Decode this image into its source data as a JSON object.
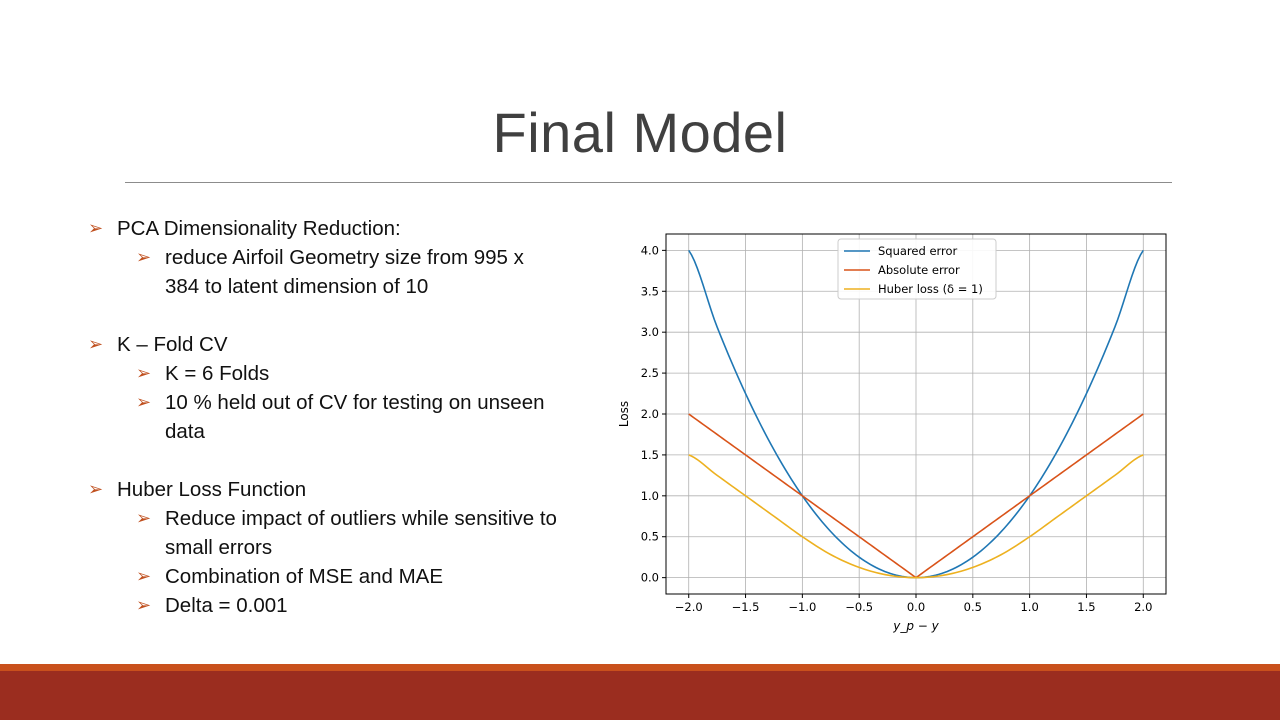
{
  "slide": {
    "title": "Final Model"
  },
  "bullets": [
    {
      "level": 1,
      "text": "PCA Dimensionality Reduction:",
      "gap": false
    },
    {
      "level": 2,
      "text": "reduce Airfoil Geometry size from 995 x 384 to latent dimension of 10",
      "gap": false
    },
    {
      "level": 1,
      "text": "K – Fold CV",
      "gap": true
    },
    {
      "level": 2,
      "text": "K = 6 Folds",
      "gap": false
    },
    {
      "level": 2,
      "text": "10 % held out of CV for testing on unseen data",
      "gap": false
    },
    {
      "level": 1,
      "text": "Huber Loss Function",
      "gap": true
    },
    {
      "level": 2,
      "text": "Reduce impact of outliers while sensitive to small errors",
      "gap": false
    },
    {
      "level": 2,
      "text": "Combination of MSE and MAE",
      "gap": false
    },
    {
      "level": 2,
      "text": "Delta = 0.001",
      "gap": false
    }
  ],
  "colors": {
    "bullet_arrow": "#c0501f",
    "footer_accent": "#c9501c",
    "footer_bar": "#9b2d1f"
  },
  "chart_data": {
    "type": "line",
    "title": "",
    "xlabel": "y_p − y",
    "ylabel": "Loss",
    "xlim": [
      -2.2,
      2.2
    ],
    "ylim": [
      -0.2,
      4.2
    ],
    "xticks": [
      -2.0,
      -1.5,
      -1.0,
      -0.5,
      0.0,
      0.5,
      1.0,
      1.5,
      2.0
    ],
    "yticks": [
      0.0,
      0.5,
      1.0,
      1.5,
      2.0,
      2.5,
      3.0,
      3.5,
      4.0
    ],
    "xtick_labels": [
      "−2.0",
      "−1.5",
      "−1.0",
      "−0.5",
      "0.0",
      "0.5",
      "1.0",
      "1.5",
      "2.0"
    ],
    "ytick_labels": [
      "0.0",
      "0.5",
      "1.0",
      "1.5",
      "2.0",
      "2.5",
      "3.0",
      "3.5",
      "4.0"
    ],
    "grid": true,
    "legend_position": "top-center",
    "x": [
      -2.0,
      -1.75,
      -1.5,
      -1.25,
      -1.0,
      -0.75,
      -0.5,
      -0.25,
      0.0,
      0.25,
      0.5,
      0.75,
      1.0,
      1.25,
      1.5,
      1.75,
      2.0
    ],
    "series": [
      {
        "name": "Squared error",
        "color": "#1f77b4",
        "values": [
          4.0,
          3.0625,
          2.25,
          1.5625,
          1.0,
          0.5625,
          0.25,
          0.0625,
          0.0,
          0.0625,
          0.25,
          0.5625,
          1.0,
          1.5625,
          2.25,
          3.0625,
          4.0
        ]
      },
      {
        "name": "Absolute error",
        "color": "#d95319",
        "values": [
          2.0,
          1.75,
          1.5,
          1.25,
          1.0,
          0.75,
          0.5,
          0.25,
          0.0,
          0.25,
          0.5,
          0.75,
          1.0,
          1.25,
          1.5,
          1.75,
          2.0
        ]
      },
      {
        "name": "Huber loss (δ = 1)",
        "color": "#edb120",
        "values": [
          1.5,
          1.25,
          1.0,
          0.75,
          0.5,
          0.28125,
          0.125,
          0.03125,
          0.0,
          0.03125,
          0.125,
          0.28125,
          0.5,
          0.75,
          1.0,
          1.25,
          1.5
        ]
      }
    ]
  }
}
